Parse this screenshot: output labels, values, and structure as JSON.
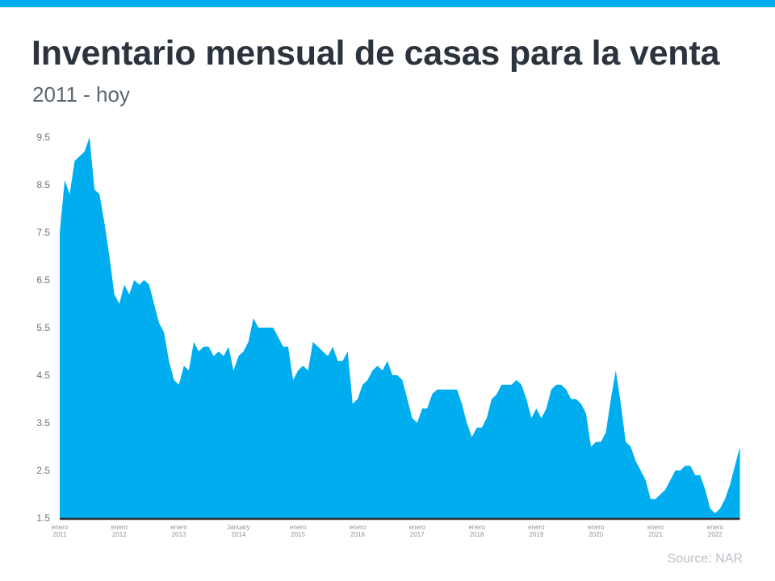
{
  "header": {
    "title": "Inventario mensual de casas para la venta",
    "subtitle": "2011 - hoy"
  },
  "footer": {
    "source": "Source: NAR"
  },
  "colors": {
    "accent": "#00aeef",
    "area": "#00aeef",
    "axis": "#2b2b2b"
  },
  "chart_data": {
    "type": "area",
    "title": "Inventario mensual de casas para la venta",
    "subtitle": "2011 - hoy",
    "xlabel": "",
    "ylabel": "",
    "ylim": [
      1.5,
      9.5
    ],
    "yticks": [
      "1.5",
      "2.5",
      "3.5",
      "4.5",
      "5.5",
      "6.5",
      "7.5",
      "8.5",
      "9.5"
    ],
    "xticks": [
      {
        "line1": "enero",
        "line2": "2011"
      },
      {
        "line1": "enero",
        "line2": "2012"
      },
      {
        "line1": "enero",
        "line2": "2013"
      },
      {
        "line1": "January",
        "line2": "2014"
      },
      {
        "line1": "enero",
        "line2": "2015"
      },
      {
        "line1": "enero",
        "line2": "2016"
      },
      {
        "line1": "enero",
        "line2": "2017"
      },
      {
        "line1": "enero",
        "line2": "2018"
      },
      {
        "line1": "enero",
        "line2": "2019"
      },
      {
        "line1": "enero",
        "line2": "2020"
      },
      {
        "line1": "enero",
        "line2": "2021"
      },
      {
        "line1": "enero",
        "line2": "2022"
      }
    ],
    "x_start": "2011-01",
    "x_end": "2022-06",
    "frequency": "monthly",
    "grid": false,
    "legend": "none",
    "values": [
      7.5,
      8.6,
      8.3,
      9.0,
      9.1,
      9.2,
      9.5,
      8.4,
      8.3,
      7.7,
      7.0,
      6.2,
      6.0,
      6.4,
      6.2,
      6.5,
      6.4,
      6.5,
      6.4,
      6.0,
      5.6,
      5.4,
      4.8,
      4.4,
      4.3,
      4.7,
      4.6,
      5.2,
      5.0,
      5.1,
      5.1,
      4.9,
      5.0,
      4.9,
      5.1,
      4.6,
      4.9,
      5.0,
      5.2,
      5.7,
      5.5,
      5.5,
      5.5,
      5.5,
      5.3,
      5.1,
      5.1,
      4.4,
      4.6,
      4.7,
      4.6,
      5.2,
      5.1,
      5.0,
      4.9,
      5.1,
      4.8,
      4.8,
      5.0,
      3.9,
      4.0,
      4.3,
      4.4,
      4.6,
      4.7,
      4.6,
      4.8,
      4.5,
      4.5,
      4.4,
      4.0,
      3.6,
      3.5,
      3.8,
      3.8,
      4.1,
      4.2,
      4.2,
      4.2,
      4.2,
      4.2,
      3.9,
      3.5,
      3.2,
      3.4,
      3.4,
      3.6,
      4.0,
      4.1,
      4.3,
      4.3,
      4.3,
      4.4,
      4.3,
      4.0,
      3.6,
      3.8,
      3.6,
      3.8,
      4.2,
      4.3,
      4.3,
      4.2,
      4.0,
      4.0,
      3.9,
      3.7,
      3.0,
      3.1,
      3.1,
      3.3,
      4.0,
      4.6,
      3.9,
      3.1,
      3.0,
      2.7,
      2.5,
      2.3,
      1.9,
      1.9,
      2.0,
      2.1,
      2.3,
      2.5,
      2.5,
      2.6,
      2.6,
      2.4,
      2.4,
      2.1,
      1.7,
      1.6,
      1.7,
      1.9,
      2.2,
      2.6,
      3.0
    ]
  }
}
